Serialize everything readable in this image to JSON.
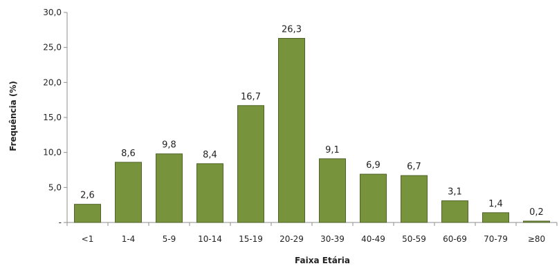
{
  "chart_data": {
    "type": "bar",
    "xlabel": "Faixa Etária",
    "ylabel": "Frequência (%)",
    "categories": [
      "<1",
      "1-4",
      "5-9",
      "10-14",
      "15-19",
      "20-29",
      "30-39",
      "40-49",
      "50-59",
      "60-69",
      "70-79",
      "≥80"
    ],
    "values": [
      2.6,
      8.6,
      9.8,
      8.4,
      16.7,
      26.3,
      9.1,
      6.9,
      6.7,
      3.1,
      1.4,
      0.2
    ],
    "data_labels": [
      "2,6",
      "8,6",
      "9,8",
      "8,4",
      "16,7",
      "26,3",
      "9,1",
      "6,9",
      "6,7",
      "3,1",
      "1,4",
      "0,2"
    ],
    "ylim": [
      0,
      30
    ],
    "yticks": [
      0,
      5,
      10,
      15,
      20,
      25,
      30
    ],
    "ytick_labels": [
      "-",
      "5,0",
      "10,0",
      "15,0",
      "20,0",
      "25,0",
      "30,0"
    ],
    "grid": false,
    "legend": "none",
    "bar_color": "#77933C",
    "bar_edge_color": "#4F6228"
  }
}
